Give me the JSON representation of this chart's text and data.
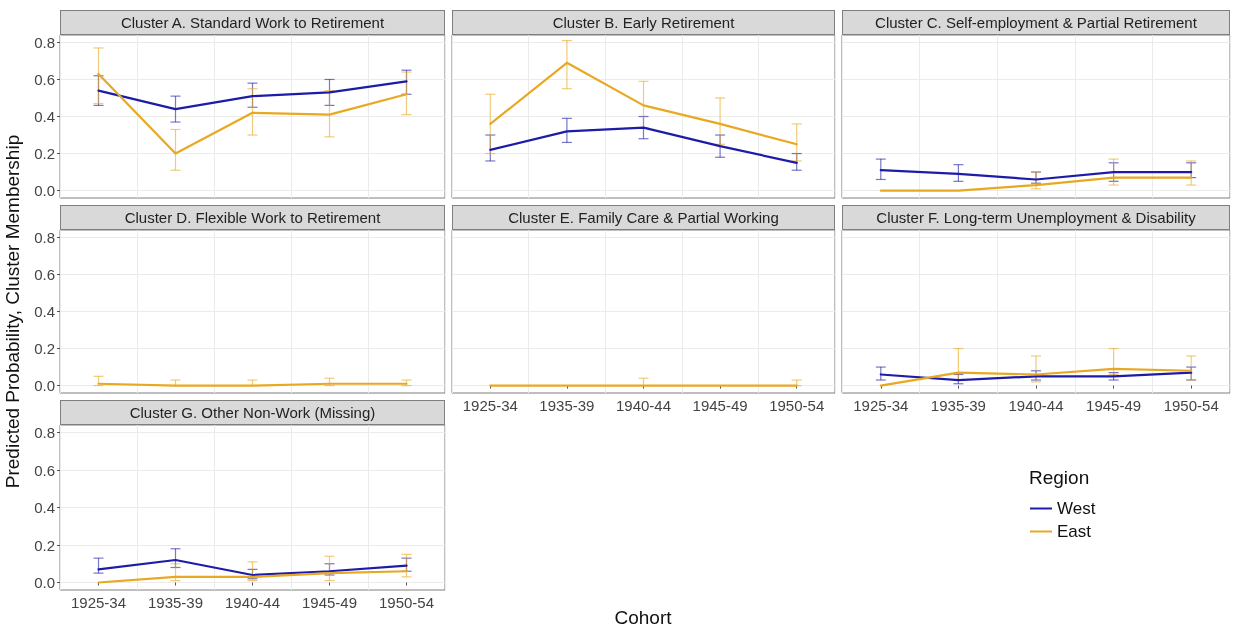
{
  "chart_data": [
    {
      "type": "line",
      "title": "Cluster A. Standard Work to Retirement",
      "categories": [
        "1925-34",
        "1935-39",
        "1940-44",
        "1945-49",
        "1950-54"
      ],
      "ylim": [
        -0.04,
        0.84
      ],
      "yticks": [
        {
          "value": 0,
          "label": "0.0"
        },
        {
          "value": 0.2,
          "label": "0.2"
        },
        {
          "value": 0.4,
          "label": "0.4"
        },
        {
          "value": 0.6,
          "label": "0.6"
        },
        {
          "value": 0.8,
          "label": "0.8"
        }
      ],
      "grid": true,
      "marker": "none",
      "tick_labels": "y",
      "series": [
        {
          "color": "#1c1ca8",
          "values": [
            0.54,
            0.44,
            0.51,
            0.53,
            0.59
          ],
          "errors": [
            [
              0.46,
              0.62
            ],
            [
              0.37,
              0.51
            ],
            [
              0.45,
              0.58
            ],
            [
              0.46,
              0.6
            ],
            [
              0.52,
              0.65
            ]
          ]
        },
        {
          "color": "#e8a820",
          "values": [
            0.63,
            0.2,
            0.42,
            0.41,
            0.52
          ],
          "errors": [
            [
              0.47,
              0.77
            ],
            [
              0.11,
              0.33
            ],
            [
              0.3,
              0.55
            ],
            [
              0.29,
              0.54
            ],
            [
              0.41,
              0.64
            ]
          ]
        }
      ]
    },
    {
      "type": "line",
      "title": "Cluster B. Early Retirement",
      "categories": [
        "1925-34",
        "1935-39",
        "1940-44",
        "1945-49",
        "1950-54"
      ],
      "ylim": [
        -0.04,
        0.84
      ],
      "yticks": [
        0,
        0.2,
        0.4,
        0.6,
        0.8
      ],
      "grid": true,
      "marker": "none",
      "tick_labels": false,
      "series": [
        {
          "color": "#1c1ca8",
          "values": [
            0.22,
            0.32,
            0.34,
            0.24,
            0.15
          ],
          "errors": [
            [
              0.16,
              0.3
            ],
            [
              0.26,
              0.39
            ],
            [
              0.28,
              0.4
            ],
            [
              0.18,
              0.3
            ],
            [
              0.11,
              0.2
            ]
          ]
        },
        {
          "color": "#e8a820",
          "values": [
            0.36,
            0.69,
            0.46,
            0.36,
            0.25
          ],
          "errors": [
            [
              0.2,
              0.52
            ],
            [
              0.55,
              0.81
            ],
            [
              0.34,
              0.59
            ],
            [
              0.25,
              0.5
            ],
            [
              0.16,
              0.36
            ]
          ]
        }
      ]
    },
    {
      "type": "line",
      "title": "Cluster C. Self-employment & Partial Retirement",
      "categories": [
        "1925-34",
        "1935-39",
        "1940-44",
        "1945-49",
        "1950-54"
      ],
      "ylim": [
        -0.04,
        0.84
      ],
      "yticks": [
        0,
        0.2,
        0.4,
        0.6,
        0.8
      ],
      "grid": true,
      "marker": "none",
      "tick_labels": false,
      "series": [
        {
          "color": "#1c1ca8",
          "values": [
            0.11,
            0.09,
            0.06,
            0.1,
            0.1
          ],
          "errors": [
            [
              0.06,
              0.17
            ],
            [
              0.05,
              0.14
            ],
            [
              0.04,
              0.1
            ],
            [
              0.05,
              0.15
            ],
            [
              0.07,
              0.15
            ]
          ]
        },
        {
          "color": "#e8a820",
          "values": [
            0.0,
            0.0,
            0.03,
            0.07,
            0.07
          ],
          "errors": [
            null,
            null,
            [
              0.01,
              0.1
            ],
            [
              0.03,
              0.17
            ],
            [
              0.03,
              0.16
            ]
          ]
        }
      ]
    },
    {
      "type": "line",
      "title": "Cluster D. Flexible Work to Retirement",
      "ylabel": "Predicted Probability, Cluster Membership",
      "categories": [
        "1925-34",
        "1935-39",
        "1940-44",
        "1945-49",
        "1950-54"
      ],
      "ylim": [
        -0.04,
        0.84
      ],
      "yticks": [
        {
          "value": 0,
          "label": "0.0"
        },
        {
          "value": 0.2,
          "label": "0.2"
        },
        {
          "value": 0.4,
          "label": "0.4"
        },
        {
          "value": 0.6,
          "label": "0.6"
        },
        {
          "value": 0.8,
          "label": "0.8"
        }
      ],
      "grid": true,
      "marker": "none",
      "tick_labels": "y",
      "series": [
        {
          "color": "#e8a820",
          "values": [
            0.01,
            0.0,
            0.0,
            0.01,
            0.01
          ],
          "errors": [
            [
              0.0,
              0.05
            ],
            [
              0.0,
              0.03
            ],
            [
              0.0,
              0.03
            ],
            [
              0.0,
              0.04
            ],
            [
              0.0,
              0.03
            ]
          ]
        }
      ]
    },
    {
      "type": "line",
      "title": "Cluster E. Family Care & Partial Working",
      "xlabel": "Cohort",
      "categories": [
        "1925-34",
        "1935-39",
        "1940-44",
        "1945-49",
        "1950-54"
      ],
      "ylim": [
        -0.04,
        0.84
      ],
      "yticks": [
        0,
        0.2,
        0.4,
        0.6,
        0.8
      ],
      "grid": true,
      "marker": "none",
      "tick_labels": "x",
      "series": [
        {
          "color": "#e8a820",
          "values": [
            0.0,
            0.0,
            0.0,
            0.0,
            0.0
          ],
          "errors": [
            null,
            null,
            [
              0.0,
              0.04
            ],
            null,
            [
              0.0,
              0.03
            ]
          ]
        }
      ]
    },
    {
      "type": "line",
      "title": "Cluster F. Long-term Unemployment & Disability",
      "legend_title": "Region",
      "legend": "right",
      "categories": [
        "1925-34",
        "1935-39",
        "1940-44",
        "1945-49",
        "1950-54"
      ],
      "ylim": [
        -0.04,
        0.84
      ],
      "yticks": [
        0,
        0.2,
        0.4,
        0.6,
        0.8
      ],
      "grid": true,
      "marker": "none",
      "tick_labels": "x",
      "series": [
        {
          "name": "West",
          "color": "#1c1ca8",
          "values": [
            0.06,
            0.03,
            0.05,
            0.05,
            0.07
          ],
          "errors": [
            [
              0.03,
              0.1
            ],
            [
              0.01,
              0.06
            ],
            [
              0.03,
              0.08
            ],
            [
              0.03,
              0.07
            ],
            [
              0.03,
              0.1
            ]
          ]
        },
        {
          "name": "East",
          "color": "#e8a820",
          "values": [
            0.0,
            0.07,
            0.06,
            0.09,
            0.08
          ],
          "errors": [
            null,
            [
              0.03,
              0.2
            ],
            [
              0.02,
              0.16
            ],
            [
              0.06,
              0.2
            ],
            [
              0.03,
              0.16
            ]
          ]
        }
      ]
    },
    {
      "type": "line",
      "title": "Cluster G. Other Non-Work (Missing)",
      "categories": [
        "1925-34",
        "1935-39",
        "1940-44",
        "1945-49",
        "1950-54"
      ],
      "ylim": [
        -0.04,
        0.84
      ],
      "yticks": [
        {
          "value": 0,
          "label": "0.0"
        },
        {
          "value": 0.2,
          "label": "0.2"
        },
        {
          "value": 0.4,
          "label": "0.4"
        },
        {
          "value": 0.6,
          "label": "0.6"
        },
        {
          "value": 0.8,
          "label": "0.8"
        }
      ],
      "grid": true,
      "marker": "none",
      "series": [
        {
          "color": "#1c1ca8",
          "values": [
            0.07,
            0.12,
            0.04,
            0.06,
            0.09
          ],
          "errors": [
            [
              0.05,
              0.13
            ],
            [
              0.08,
              0.18
            ],
            [
              0.02,
              0.07
            ],
            [
              0.04,
              0.1
            ],
            [
              0.06,
              0.13
            ]
          ]
        },
        {
          "color": "#e8a820",
          "values": [
            0.0,
            0.03,
            0.03,
            0.05,
            0.06
          ],
          "errors": [
            null,
            [
              0.01,
              0.1
            ],
            [
              0.01,
              0.11
            ],
            [
              0.01,
              0.14
            ],
            [
              0.03,
              0.15
            ]
          ]
        }
      ]
    }
  ]
}
